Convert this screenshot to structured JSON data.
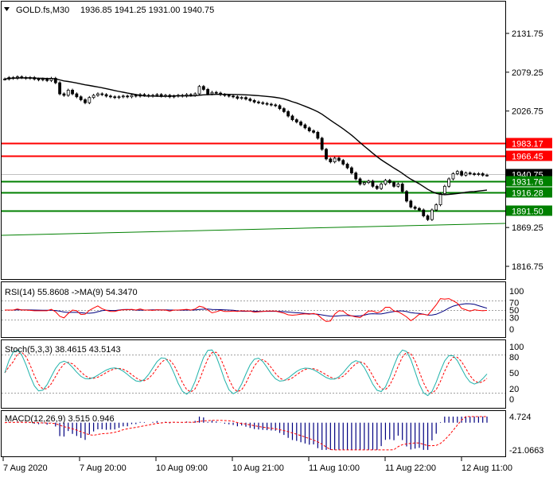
{
  "header": {
    "symbol_timeframe": "GOLD.fs,M30",
    "ohlc": "1936.85 1941.25 1931.00 1940.75",
    "collapse_icon": "triangle-down-icon"
  },
  "price_axis": {
    "ticks": [
      "2131.75",
      "2079.25",
      "2026.75",
      "1869.25",
      "1816.75"
    ],
    "current_price": "1940.75"
  },
  "levels": [
    {
      "label": "1983.17",
      "value": 1983.17,
      "color": "#ff0000"
    },
    {
      "label": "1966.45",
      "value": 1966.45,
      "color": "#ff0000"
    },
    {
      "label": "1931.76",
      "value": 1931.76,
      "color": "#008000"
    },
    {
      "label": "1916.28",
      "value": 1916.28,
      "color": "#008000"
    },
    {
      "label": "1891.50",
      "value": 1891.5,
      "color": "#008000"
    }
  ],
  "rsi": {
    "title": "RSI(14) 55.8608 ->MA(9) 54.3470",
    "ticks": [
      "100",
      "70",
      "50",
      "30",
      "0"
    ]
  },
  "stoch": {
    "title": "Stoch(5,3,3) 38.4615 43.5143",
    "ticks": [
      "100",
      "80",
      "50",
      "20",
      "0"
    ]
  },
  "macd": {
    "title": "MACD(12,26,9) 3.515 0.946",
    "ticks": [
      "4.724",
      "-21.0663"
    ]
  },
  "time_axis": {
    "labels": [
      "7 Aug 2020",
      "7 Aug 20:00",
      "10 Aug 09:00",
      "10 Aug 21:00",
      "11 Aug 10:00",
      "11 Aug 22:00",
      "12 Aug 11:00"
    ]
  },
  "colors": {
    "candle": "#000000",
    "ma_line": "#000000",
    "trend_line": "#008000",
    "rsi_line": "#ff0000",
    "rsi_ma": "#000080",
    "stoch_main": "#20b2aa",
    "stoch_signal": "#ff0000",
    "macd_hist": "#000080",
    "macd_signal": "#ff0000"
  }
}
